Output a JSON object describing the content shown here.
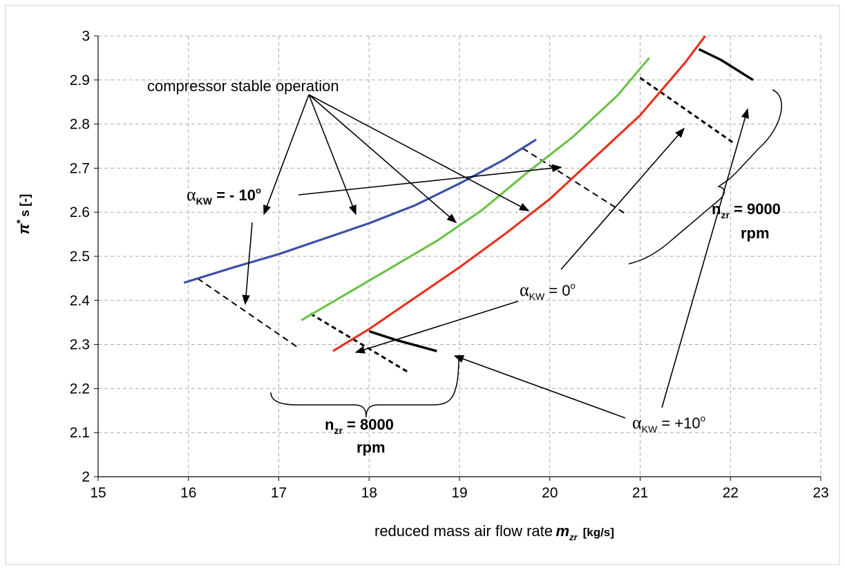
{
  "chart_data": {
    "type": "line",
    "title": "",
    "xlabel": "reduced mass air flow rate",
    "xlabel_symbol": "m",
    "xlabel_symbol_sub": "zr",
    "xlabel_unit": "[kg/s]",
    "ylabel_symbol": "π",
    "ylabel_sup": "*",
    "ylabel_rest": "s [-]",
    "xlim": [
      15,
      23
    ],
    "ylim": [
      2,
      3
    ],
    "grid": true,
    "x_ticks": [
      "15",
      "16",
      "17",
      "18",
      "19",
      "20",
      "21",
      "22",
      "23"
    ],
    "y_ticks": [
      "2",
      "2.1",
      "2.2",
      "2.3",
      "2.4",
      "2.5",
      "2.6",
      "2.7",
      "2.8",
      "2.9",
      "3"
    ],
    "series": [
      {
        "color": "#3b4fa8",
        "x": [
          15.95,
          16.5,
          17.0,
          17.5,
          18.0,
          18.5,
          19.0,
          19.5,
          19.85
        ],
        "y": [
          2.44,
          2.475,
          2.505,
          2.54,
          2.575,
          2.615,
          2.665,
          2.72,
          2.765
        ]
      },
      {
        "color": "#6cc24a",
        "x": [
          17.25,
          17.75,
          18.25,
          18.75,
          19.25,
          19.75,
          20.25,
          20.75,
          21.1
        ],
        "y": [
          2.355,
          2.415,
          2.475,
          2.535,
          2.605,
          2.69,
          2.77,
          2.865,
          2.95
        ]
      },
      {
        "color": "#e8321e",
        "x": [
          17.6,
          18.0,
          18.5,
          19.0,
          19.5,
          20.0,
          20.5,
          21.0,
          21.5,
          21.72
        ],
        "y": [
          2.285,
          2.335,
          2.405,
          2.475,
          2.55,
          2.63,
          2.725,
          2.82,
          2.94,
          3.0
        ]
      }
    ],
    "stability_lines": [
      {
        "style": "dashed",
        "x": [
          16.1,
          17.2
        ],
        "y": [
          2.45,
          2.295
        ]
      },
      {
        "style": "dashed-bold",
        "x": [
          17.35,
          18.45
        ],
        "y": [
          2.37,
          2.235
        ]
      },
      {
        "style": "solid-bold",
        "x": [
          18.0,
          18.3,
          18.75
        ],
        "y": [
          2.33,
          2.31,
          2.285
        ]
      },
      {
        "style": "dashed",
        "x": [
          19.7,
          20.85
        ],
        "y": [
          2.745,
          2.595
        ]
      },
      {
        "style": "dashed-bold",
        "x": [
          21.0,
          22.05
        ],
        "y": [
          2.905,
          2.755
        ]
      },
      {
        "style": "solid-bold",
        "x": [
          21.65,
          21.9,
          22.25
        ],
        "y": [
          2.97,
          2.945,
          2.9
        ]
      }
    ],
    "annotations": {
      "stable": "compressor stable operation",
      "alpha_neg": {
        "symbol": "α",
        "sub": "KW",
        "text": " = - 10",
        "sup": "o"
      },
      "alpha_zero": {
        "symbol": "α",
        "sub": "KW",
        "text": " = 0",
        "sup": "o"
      },
      "alpha_pos": {
        "symbol": "α",
        "sub": "KW",
        "text": " = +10",
        "sup": "o"
      },
      "n8000": {
        "sym": "n",
        "sub": "zr",
        "value": " = 8000",
        "unit": "rpm"
      },
      "n9000": {
        "sym": "n",
        "sub": "zr",
        "value": " = 9000",
        "unit": "rpm"
      }
    }
  }
}
